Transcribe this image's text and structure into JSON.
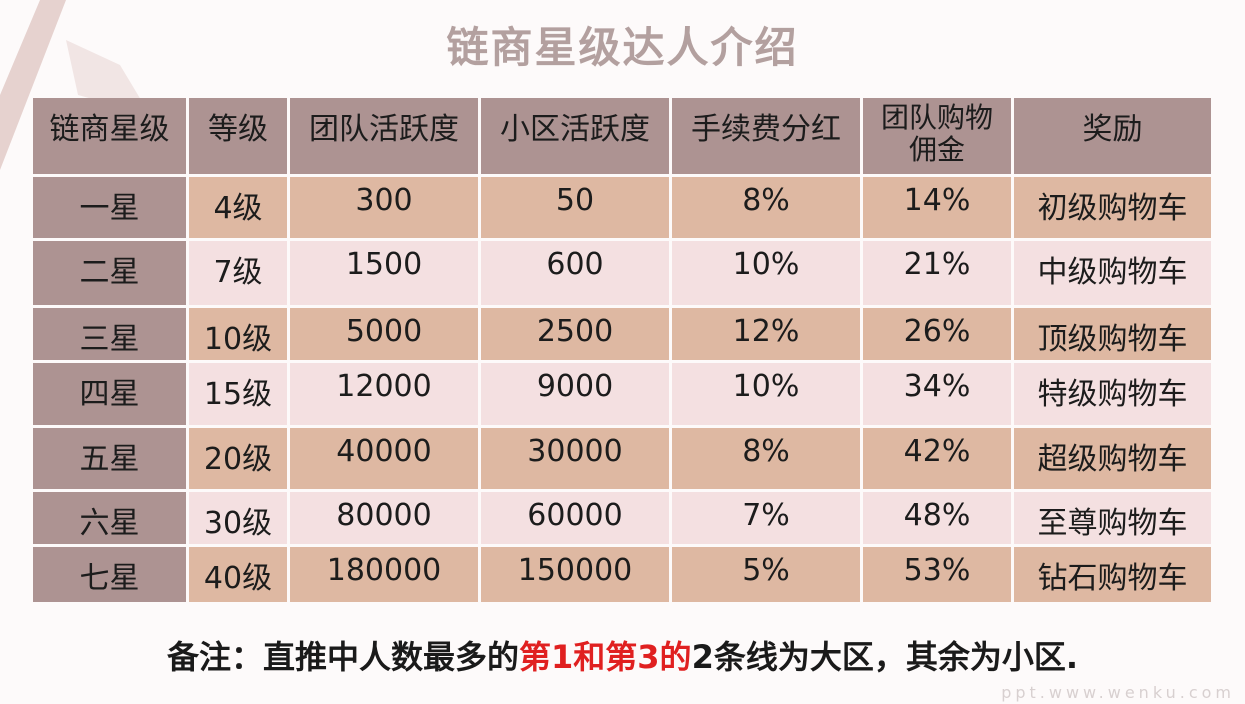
{
  "title": "链商星级达人介绍",
  "table": {
    "headers": [
      "链商星级",
      "等级",
      "团队活跃度",
      "小区活跃度",
      "手续费分红",
      "团队购物佣金",
      "奖励"
    ],
    "rows": [
      [
        "一星",
        "4级",
        "300",
        "50",
        "8%",
        "14%",
        "初级购物车"
      ],
      [
        "二星",
        "7级",
        "1500",
        "600",
        "10%",
        "21%",
        "中级购物车"
      ],
      [
        "三星",
        "10级",
        "5000",
        "2500",
        "12%",
        "26%",
        "顶级购物车"
      ],
      [
        "四星",
        "15级",
        "12000",
        "9000",
        "10%",
        "34%",
        "特级购物车"
      ],
      [
        "五星",
        "20级",
        "40000",
        "30000",
        "8%",
        "42%",
        "超级购物车"
      ],
      [
        "六星",
        "30级",
        "80000",
        "60000",
        "7%",
        "48%",
        "至尊购物车"
      ],
      [
        "七星",
        "40级",
        "180000",
        "150000",
        "5%",
        "53%",
        "钻石购物车"
      ]
    ]
  },
  "note": {
    "part1": "备注：直推中人数最多的",
    "highlight": "第1和第3的",
    "part2": "2条线为大区，其余为小区."
  },
  "watermark": "ppt.www.wenku.com",
  "colors": {
    "header_bg": "#ad9392",
    "row_odd": "#deb8a2",
    "row_even": "#f4e0e1",
    "highlight": "#e02020"
  }
}
